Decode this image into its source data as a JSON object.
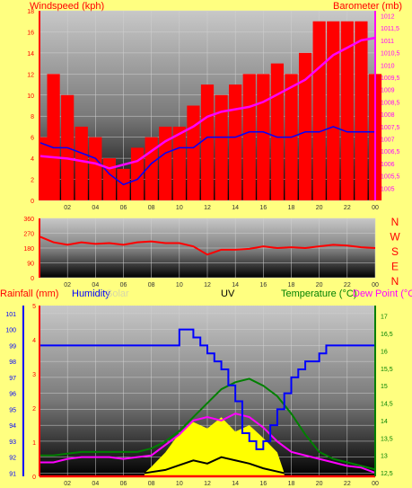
{
  "chart_data": [
    {
      "type": "line",
      "title": "",
      "left_axis_label": "Windspeed (kph)",
      "right_axis_label": "Barometer (mb)",
      "x_ticks": [
        "02",
        "04",
        "06",
        "08",
        "10",
        "12",
        "14",
        "16",
        "18",
        "20",
        "22",
        "00"
      ],
      "y_left_ticks": [
        "0",
        "2",
        "4",
        "6",
        "8",
        "10",
        "12",
        "14",
        "16",
        "18"
      ],
      "y_left_range": [
        0,
        18
      ],
      "y_right_ticks": [
        "1005",
        "1005,5",
        "1006",
        "1006,5",
        "1007",
        "1007,5",
        "1008",
        "1008,5",
        "1009",
        "1009,5",
        "1010",
        "1010,5",
        "1011",
        "1011,5",
        "1012"
      ],
      "y_right_range": [
        1004.5,
        1012.2
      ],
      "x_range": [
        0,
        24
      ],
      "series": [
        {
          "key": "gust",
          "axis": "left",
          "color": "#ff0000",
          "style": "bars",
          "x": [
            0,
            1,
            2,
            3,
            4,
            5,
            6,
            7,
            8,
            9,
            10,
            11,
            12,
            13,
            14,
            15,
            16,
            17,
            18,
            19,
            20,
            21,
            22,
            23,
            24
          ],
          "values": [
            6,
            12,
            10,
            7,
            6,
            4,
            3,
            5,
            6,
            7,
            7,
            9,
            11,
            10,
            11,
            12,
            12,
            13,
            12,
            14,
            17,
            17,
            17,
            17,
            12
          ]
        },
        {
          "key": "avg",
          "axis": "left",
          "color": "#0000ff",
          "style": "line",
          "x": [
            0,
            1,
            2,
            3,
            4,
            5,
            6,
            7,
            8,
            9,
            10,
            11,
            12,
            13,
            14,
            15,
            16,
            17,
            18,
            19,
            20,
            21,
            22,
            23,
            24
          ],
          "values": [
            5.5,
            5,
            5,
            4.5,
            4,
            2.5,
            1.5,
            2,
            3.5,
            4.5,
            5,
            5,
            6,
            6,
            6,
            6.5,
            6.5,
            6,
            6,
            6.5,
            6.5,
            7,
            6.5,
            6.5,
            6.5
          ]
        },
        {
          "key": "pressure",
          "axis": "right",
          "color": "#ff00ff",
          "style": "line",
          "x": [
            0,
            1,
            2,
            3,
            4,
            5,
            6,
            7,
            8,
            9,
            10,
            11,
            12,
            13,
            14,
            15,
            16,
            17,
            18,
            19,
            20,
            21,
            22,
            23,
            24
          ],
          "values": [
            1006.3,
            1006.25,
            1006.2,
            1006.1,
            1006,
            1005.8,
            1005.95,
            1006.1,
            1006.5,
            1006.9,
            1007.2,
            1007.5,
            1007.9,
            1008.1,
            1008.2,
            1008.3,
            1008.5,
            1008.8,
            1009.1,
            1009.4,
            1009.9,
            1010.4,
            1010.7,
            1011,
            1011.1
          ]
        }
      ]
    },
    {
      "type": "line",
      "title": "",
      "right_axis_label": "NWSEN",
      "x_ticks": [
        "02",
        "04",
        "06",
        "08",
        "10",
        "12",
        "14",
        "16",
        "18",
        "20",
        "22",
        "00"
      ],
      "y_left_ticks": [
        "0",
        "90",
        "180",
        "270",
        "360"
      ],
      "y_left_range": [
        0,
        360
      ],
      "x_range": [
        0,
        24
      ],
      "series": [
        {
          "key": "direction",
          "axis": "left",
          "color": "#ff0000",
          "style": "line",
          "x": [
            0,
            1,
            2,
            3,
            4,
            5,
            6,
            7,
            8,
            9,
            10,
            11,
            12,
            13,
            14,
            15,
            16,
            17,
            18,
            19,
            20,
            21,
            22,
            23,
            24
          ],
          "values": [
            250,
            215,
            200,
            215,
            205,
            210,
            200,
            215,
            220,
            210,
            210,
            190,
            140,
            170,
            170,
            175,
            190,
            180,
            185,
            180,
            190,
            200,
            195,
            185,
            180
          ]
        }
      ]
    },
    {
      "type": "line",
      "title": "",
      "labels": {
        "rain": "Rainfall (mm)",
        "humidity": "Humidity",
        "solar": "Solar",
        "uv": "UV",
        "temperature": "Temperature (°C)",
        "dewpoint": "Dew Point (°C)"
      },
      "x_ticks": [
        "02",
        "04",
        "06",
        "08",
        "10",
        "12",
        "14",
        "16",
        "18",
        "20",
        "22",
        "00"
      ],
      "y_left_ticks": [
        "91",
        "92",
        "93",
        "94",
        "95",
        "96",
        "97",
        "98",
        "99",
        "100",
        "101"
      ],
      "y_left_range": [
        90.8,
        101.5
      ],
      "y_rain_ticks": [
        "0",
        "1",
        "2",
        "3",
        "4",
        "5"
      ],
      "y_right_ticks": [
        "12,5",
        "13",
        "13,5",
        "14",
        "14,5",
        "15",
        "15,5",
        "16",
        "16,5",
        "17"
      ],
      "y_right_range": [
        12.4,
        17.3
      ],
      "x_range": [
        0,
        24
      ],
      "series": [
        {
          "key": "humidity",
          "axis": "left",
          "color": "#0000ff",
          "style": "step",
          "x": [
            0,
            1,
            2,
            3,
            4,
            5,
            6,
            7,
            8,
            9,
            9.5,
            10,
            10.5,
            11,
            11.5,
            12,
            12.5,
            13,
            13.5,
            14,
            14.5,
            15,
            15.5,
            16,
            16.5,
            17,
            17.5,
            18,
            18.5,
            19,
            19.5,
            20,
            20.5,
            21,
            22,
            23,
            24
          ],
          "values": [
            99,
            99,
            99,
            99,
            99,
            99,
            99,
            99,
            99,
            99,
            99,
            100,
            100,
            99.5,
            99,
            98.5,
            98,
            97.5,
            96.5,
            95.5,
            93.5,
            93,
            92.5,
            93,
            94,
            95,
            96,
            97,
            97.5,
            98,
            98,
            98.5,
            99,
            99,
            99,
            99,
            99
          ]
        },
        {
          "key": "temperature",
          "axis": "right",
          "color": "#008000",
          "style": "line",
          "x": [
            0,
            1,
            2,
            3,
            4,
            5,
            6,
            7,
            8,
            9,
            10,
            11,
            12,
            13,
            14,
            15,
            16,
            17,
            18,
            19,
            20,
            21,
            22,
            23,
            24
          ],
          "values": [
            13,
            13,
            13.05,
            13.1,
            13.1,
            13.1,
            13.1,
            13.1,
            13.2,
            13.4,
            13.7,
            14.1,
            14.5,
            14.9,
            15.1,
            15.2,
            15,
            14.7,
            14.2,
            13.6,
            13.1,
            12.9,
            12.8,
            12.7,
            12.6
          ]
        },
        {
          "key": "dewpoint",
          "axis": "right",
          "color": "#ff00ff",
          "style": "line",
          "x": [
            0,
            1,
            2,
            3,
            4,
            5,
            6,
            7,
            8,
            9,
            10,
            11,
            12,
            13,
            14,
            15,
            16,
            17,
            18,
            19,
            20,
            21,
            22,
            23,
            24
          ],
          "values": [
            12.8,
            12.8,
            12.9,
            12.95,
            12.95,
            12.95,
            12.9,
            12.95,
            13,
            13.3,
            13.6,
            14,
            14.1,
            14,
            14.2,
            14.1,
            13.8,
            13.4,
            13.1,
            13,
            12.9,
            12.8,
            12.7,
            12.65,
            12.5
          ]
        },
        {
          "key": "solar",
          "axis": "left",
          "color": "#ffff00",
          "style": "area",
          "x": [
            7.5,
            8,
            9,
            10,
            11,
            12,
            13,
            14,
            15,
            16,
            17,
            17.5
          ],
          "values": [
            91,
            91.4,
            92.3,
            93.5,
            94.2,
            93.8,
            94.5,
            93.6,
            94,
            93.2,
            92.3,
            91
          ]
        },
        {
          "key": "uv",
          "axis": "left",
          "color": "#000000",
          "style": "line",
          "x": [
            7.5,
            9,
            10,
            11,
            12,
            13,
            14,
            15,
            16,
            17,
            17.5
          ],
          "values": [
            91,
            91.2,
            91.5,
            91.8,
            91.6,
            92,
            91.8,
            91.6,
            91.3,
            91.1,
            91
          ]
        },
        {
          "key": "rain",
          "axis": "rain",
          "color": "#ff0000",
          "style": "line",
          "x": [
            0,
            24
          ],
          "values": [
            0,
            0
          ]
        }
      ]
    }
  ]
}
